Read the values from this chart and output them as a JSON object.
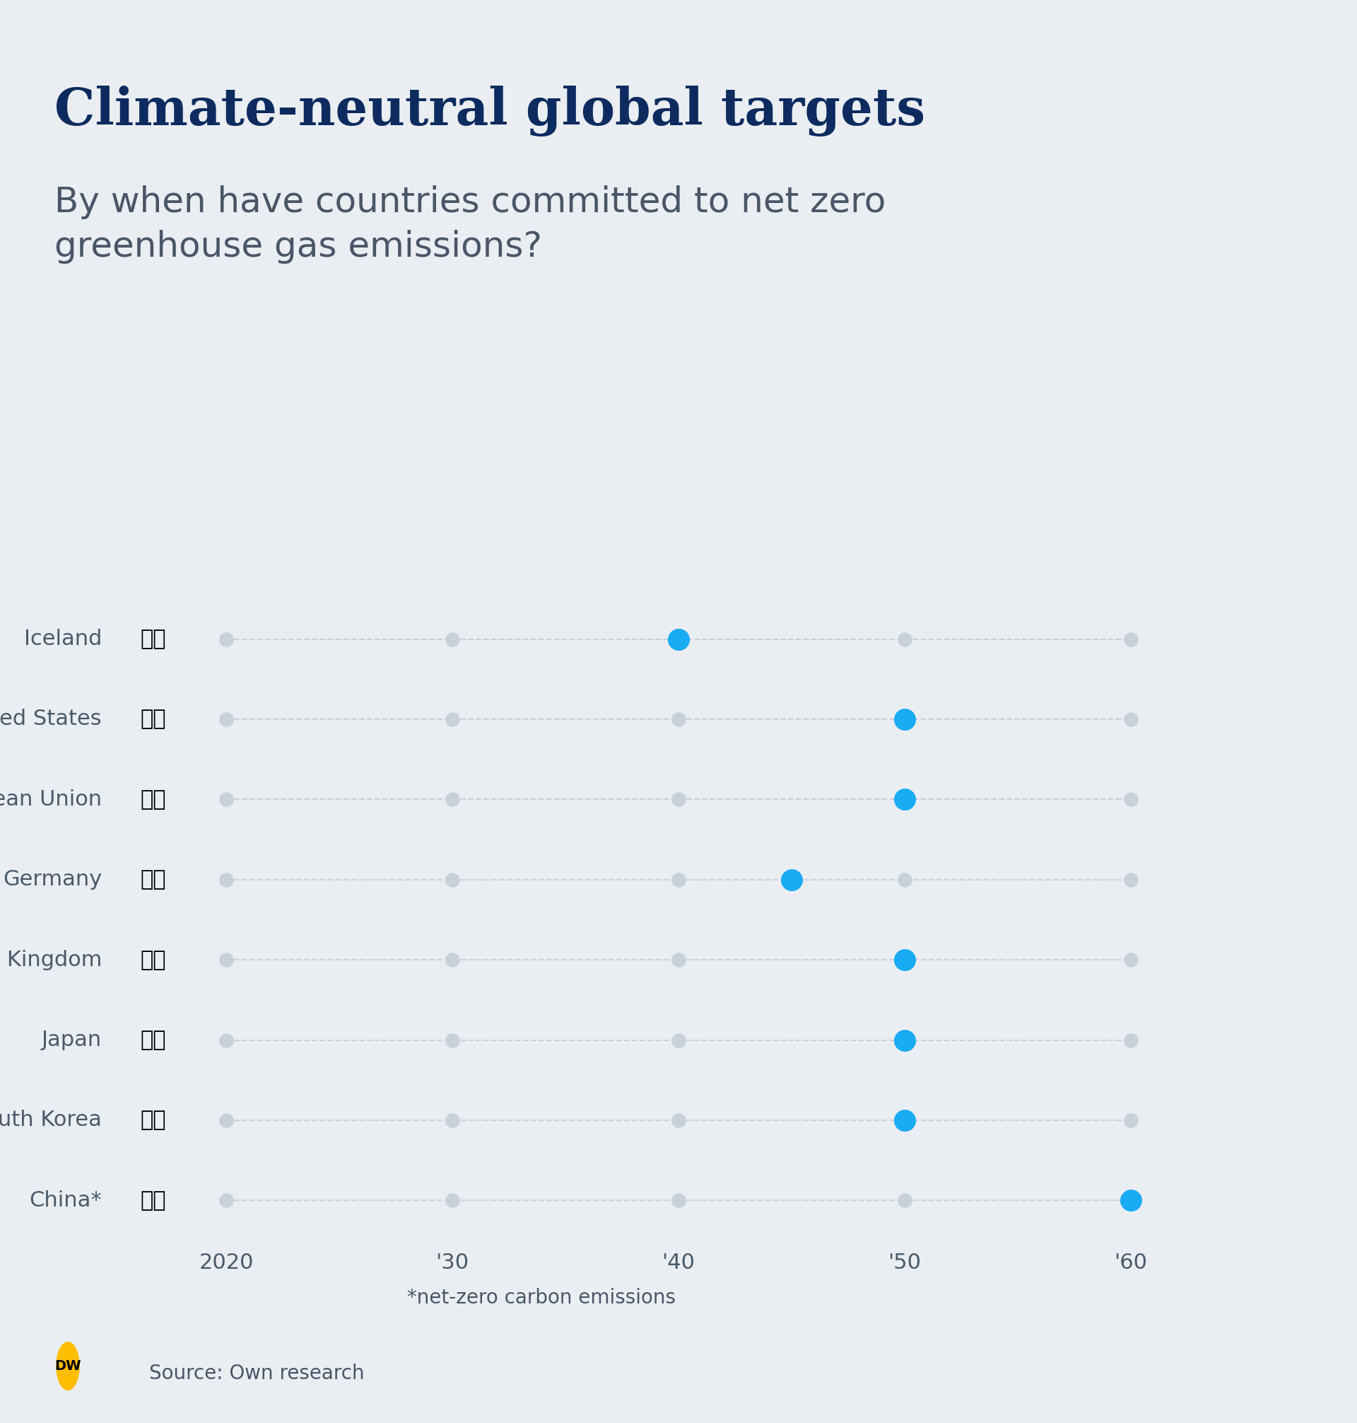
{
  "title": "Climate-neutral global targets",
  "subtitle": "By when have countries committed to net zero\ngreenhouse gas emissions?",
  "footnote": "*net-zero carbon emissions",
  "source": "Source: Own research",
  "background_color": "#EAEEF2",
  "title_color": "#0D2B5E",
  "subtitle_color": "#4A5568",
  "text_color": "#4A5A6B",
  "countries": [
    "Iceland",
    "United States",
    "European Union",
    "Germany",
    "United Kingdom",
    "Japan",
    "South Korea",
    "China*"
  ],
  "target_years": [
    2040,
    2050,
    2050,
    2045,
    2050,
    2050,
    2050,
    2060
  ],
  "x_ticks": [
    2020,
    2030,
    2040,
    2050,
    2060
  ],
  "x_tick_labels": [
    "2020",
    "'30",
    "'40",
    "'50",
    "'60"
  ],
  "active_color": "#1AABF5",
  "inactive_color": "#C8D0D8",
  "dot_size_active": 500,
  "dot_size_inactive": 220,
  "line_color": "#C8D0D8",
  "dw_logo_color": "#FFBE00",
  "flag_emojis": [
    "🇮🇸",
    "🇺🇸",
    "🇪🇺",
    "🇩🇪",
    "🇬🇧",
    "🇯🇵",
    "🇰🇷",
    "🇨🇳"
  ]
}
